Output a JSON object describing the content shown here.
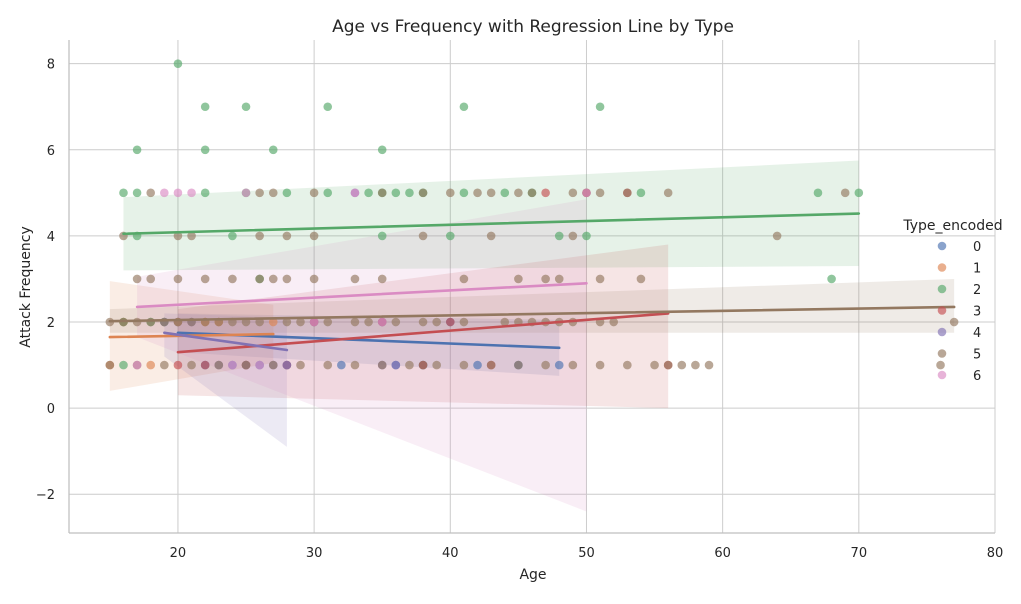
{
  "chart_data": {
    "type": "scatter",
    "title": "Age vs Frequency with Regression Line by Type",
    "xlabel": "Age",
    "ylabel": "Attack Frequency",
    "xlim": [
      12,
      80
    ],
    "ylim": [
      -2.9,
      8.55
    ],
    "x_ticks": [
      20,
      30,
      40,
      50,
      60,
      70,
      80
    ],
    "y_ticks": [
      -2,
      0,
      2,
      4,
      6,
      8
    ],
    "x_tick_labels": [
      "20",
      "30",
      "40",
      "50",
      "60",
      "70",
      "80"
    ],
    "y_tick_labels": [
      "−2",
      "0",
      "2",
      "4",
      "6",
      "8"
    ],
    "grid": true,
    "legend": {
      "title": "Type_encoded",
      "position": "right",
      "entries": [
        "0",
        "1",
        "2",
        "3",
        "4",
        "5",
        "6"
      ]
    },
    "series": [
      {
        "name": "0",
        "color": "#4c72b0",
        "points": [
          [
            20,
            2
          ],
          [
            22,
            1
          ],
          [
            24,
            1
          ],
          [
            26,
            1
          ],
          [
            28,
            1
          ],
          [
            30,
            2
          ],
          [
            32,
            1
          ],
          [
            35,
            2
          ],
          [
            36,
            1
          ],
          [
            38,
            1
          ],
          [
            40,
            2
          ],
          [
            42,
            1
          ],
          [
            45,
            1
          ],
          [
            48,
            1
          ]
        ],
        "regression": {
          "x": [
            20,
            48
          ],
          "y": [
            1.75,
            1.4
          ],
          "ci_lower": [
            1.3,
            0.75
          ],
          "ci_upper": [
            2.2,
            2.05
          ]
        }
      },
      {
        "name": "1",
        "color": "#dd8452",
        "points": [
          [
            15,
            1
          ],
          [
            16,
            2
          ],
          [
            18,
            1
          ],
          [
            20,
            2
          ],
          [
            22,
            2
          ],
          [
            23,
            2
          ],
          [
            25,
            1
          ],
          [
            27,
            2
          ]
        ],
        "regression": {
          "x": [
            15,
            27
          ],
          "y": [
            1.65,
            1.72
          ],
          "ci_lower": [
            0.4,
            1.05
          ],
          "ci_upper": [
            2.95,
            2.4
          ]
        }
      },
      {
        "name": "2",
        "color": "#55a868",
        "points": [
          [
            20,
            8
          ],
          [
            22,
            7
          ],
          [
            25,
            7
          ],
          [
            31,
            7
          ],
          [
            41,
            7
          ],
          [
            51,
            7
          ],
          [
            17,
            6
          ],
          [
            22,
            6
          ],
          [
            27,
            6
          ],
          [
            35,
            6
          ],
          [
            16,
            5
          ],
          [
            17,
            5
          ],
          [
            22,
            5
          ],
          [
            25,
            5
          ],
          [
            28,
            5
          ],
          [
            31,
            5
          ],
          [
            34,
            5
          ],
          [
            35,
            5
          ],
          [
            36,
            5
          ],
          [
            37,
            5
          ],
          [
            38,
            5
          ],
          [
            41,
            5
          ],
          [
            44,
            5
          ],
          [
            46,
            5
          ],
          [
            50,
            5
          ],
          [
            54,
            5
          ],
          [
            67,
            5
          ],
          [
            70,
            5
          ],
          [
            17,
            4
          ],
          [
            24,
            4
          ],
          [
            35,
            4
          ],
          [
            40,
            4
          ],
          [
            48,
            4
          ],
          [
            50,
            4
          ],
          [
            26,
            3
          ],
          [
            68,
            3
          ],
          [
            16,
            2
          ],
          [
            18,
            2
          ],
          [
            19,
            2
          ],
          [
            16,
            1
          ],
          [
            38,
            1
          ]
        ],
        "regression": {
          "x": [
            16,
            70
          ],
          "y": [
            4.05,
            4.52
          ],
          "ci_lower": [
            3.2,
            3.3
          ],
          "ci_upper": [
            4.9,
            5.75
          ]
        }
      },
      {
        "name": "3",
        "color": "#c44e52",
        "points": [
          [
            20,
            1
          ],
          [
            22,
            1
          ],
          [
            25,
            1
          ],
          [
            28,
            1
          ],
          [
            30,
            2
          ],
          [
            35,
            2
          ],
          [
            38,
            1
          ],
          [
            40,
            2
          ],
          [
            43,
            1
          ],
          [
            47,
            5
          ],
          [
            50,
            5
          ],
          [
            53,
            5
          ],
          [
            56,
            1
          ]
        ],
        "regression": {
          "x": [
            20,
            56
          ],
          "y": [
            1.3,
            2.2
          ],
          "ci_lower": [
            0.3,
            0.0
          ],
          "ci_upper": [
            2.3,
            3.8
          ]
        }
      },
      {
        "name": "4",
        "color": "#8172b3",
        "points": [
          [
            19,
            2
          ],
          [
            21,
            2
          ],
          [
            23,
            1
          ],
          [
            25,
            1
          ],
          [
            27,
            1
          ],
          [
            28,
            1
          ],
          [
            33,
            5
          ],
          [
            35,
            1
          ],
          [
            36,
            1
          ]
        ],
        "regression": {
          "x": [
            19,
            28
          ],
          "y": [
            1.75,
            1.35
          ],
          "ci_lower": [
            1.2,
            -0.9
          ],
          "ci_upper": [
            2.2,
            2.1
          ]
        }
      },
      {
        "name": "5",
        "color": "#937860",
        "points": [
          [
            15,
            2
          ],
          [
            16,
            2
          ],
          [
            17,
            2
          ],
          [
            18,
            2
          ],
          [
            19,
            2
          ],
          [
            20,
            2
          ],
          [
            21,
            2
          ],
          [
            22,
            2
          ],
          [
            23,
            2
          ],
          [
            24,
            2
          ],
          [
            25,
            2
          ],
          [
            26,
            2
          ],
          [
            28,
            2
          ],
          [
            29,
            2
          ],
          [
            31,
            2
          ],
          [
            33,
            2
          ],
          [
            34,
            2
          ],
          [
            36,
            2
          ],
          [
            38,
            2
          ],
          [
            39,
            2
          ],
          [
            41,
            2
          ],
          [
            44,
            2
          ],
          [
            45,
            2
          ],
          [
            46,
            2
          ],
          [
            47,
            2
          ],
          [
            48,
            2
          ],
          [
            49,
            2
          ],
          [
            51,
            2
          ],
          [
            52,
            2
          ],
          [
            77,
            2
          ],
          [
            15,
            1
          ],
          [
            17,
            1
          ],
          [
            19,
            1
          ],
          [
            21,
            1
          ],
          [
            23,
            1
          ],
          [
            25,
            1
          ],
          [
            27,
            1
          ],
          [
            29,
            1
          ],
          [
            31,
            1
          ],
          [
            33,
            1
          ],
          [
            35,
            1
          ],
          [
            37,
            1
          ],
          [
            39,
            1
          ],
          [
            41,
            1
          ],
          [
            43,
            1
          ],
          [
            45,
            1
          ],
          [
            47,
            1
          ],
          [
            49,
            1
          ],
          [
            51,
            1
          ],
          [
            53,
            1
          ],
          [
            55,
            1
          ],
          [
            56,
            1
          ],
          [
            57,
            1
          ],
          [
            58,
            1
          ],
          [
            59,
            1
          ],
          [
            76,
            1
          ],
          [
            17,
            3
          ],
          [
            18,
            3
          ],
          [
            20,
            3
          ],
          [
            22,
            3
          ],
          [
            24,
            3
          ],
          [
            26,
            3
          ],
          [
            27,
            3
          ],
          [
            28,
            3
          ],
          [
            30,
            3
          ],
          [
            33,
            3
          ],
          [
            35,
            3
          ],
          [
            41,
            3
          ],
          [
            45,
            3
          ],
          [
            47,
            3
          ],
          [
            48,
            3
          ],
          [
            51,
            3
          ],
          [
            54,
            3
          ],
          [
            16,
            4
          ],
          [
            20,
            4
          ],
          [
            21,
            4
          ],
          [
            26,
            4
          ],
          [
            28,
            4
          ],
          [
            30,
            4
          ],
          [
            38,
            4
          ],
          [
            43,
            4
          ],
          [
            49,
            4
          ],
          [
            64,
            4
          ],
          [
            18,
            5
          ],
          [
            26,
            5
          ],
          [
            27,
            5
          ],
          [
            30,
            5
          ],
          [
            35,
            5
          ],
          [
            38,
            5
          ],
          [
            40,
            5
          ],
          [
            42,
            5
          ],
          [
            43,
            5
          ],
          [
            45,
            5
          ],
          [
            46,
            5
          ],
          [
            49,
            5
          ],
          [
            51,
            5
          ],
          [
            53,
            5
          ],
          [
            56,
            5
          ],
          [
            69,
            5
          ]
        ],
        "regression": {
          "x": [
            15,
            77
          ],
          "y": [
            2.02,
            2.35
          ],
          "ci_lower": [
            1.75,
            1.75
          ],
          "ci_upper": [
            2.3,
            3.0
          ]
        }
      },
      {
        "name": "6",
        "color": "#da8bc3",
        "points": [
          [
            17,
            1
          ],
          [
            19,
            5
          ],
          [
            20,
            5
          ],
          [
            21,
            5
          ],
          [
            25,
            5
          ],
          [
            24,
            1
          ],
          [
            26,
            1
          ],
          [
            30,
            2
          ],
          [
            35,
            2
          ],
          [
            33,
            5
          ],
          [
            50,
            5
          ]
        ],
        "regression": {
          "x": [
            17,
            50
          ],
          "y": [
            2.35,
            2.9
          ],
          "ci_lower": [
            1.65,
            -2.4
          ],
          "ci_upper": [
            3.05,
            4.85
          ]
        }
      }
    ]
  }
}
